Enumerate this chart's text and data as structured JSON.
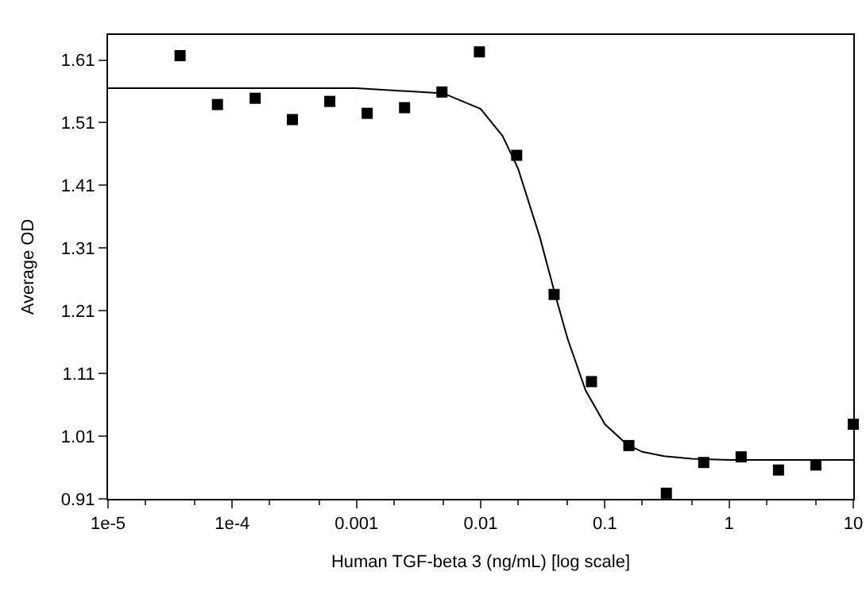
{
  "chart_data": {
    "type": "scatter",
    "xlabel": "Human TGF-beta 3 (ng/mL) [log scale]",
    "ylabel": "Average OD",
    "log": "x",
    "grid": false,
    "legend": false,
    "xlim": [
      1e-05,
      10
    ],
    "ylim": [
      0.91,
      1.65
    ],
    "xticks": [
      {
        "value": 1e-05,
        "label": "1e-5"
      },
      {
        "value": 0.0001,
        "label": "1e-4"
      },
      0.001,
      0.01,
      0.1,
      1,
      10
    ],
    "yticks": [
      0.91,
      1.01,
      1.11,
      1.21,
      1.31,
      1.41,
      1.51,
      1.61
    ],
    "series": [
      {
        "marker": "square",
        "color": "#000000",
        "x": [
          3.8e-05,
          7.6e-05,
          0.000153,
          0.000305,
          0.00061,
          0.00122,
          0.00244,
          0.00488,
          0.00977,
          0.0195,
          0.039,
          0.078,
          0.156,
          0.3125,
          0.625,
          1.25,
          2.5,
          5,
          10
        ],
        "values": [
          1.617,
          1.539,
          1.549,
          1.515,
          1.544,
          1.525,
          1.534,
          1.559,
          1.623,
          1.458,
          1.236,
          1.097,
          0.995,
          0.919,
          0.968,
          0.977,
          0.956,
          0.964,
          1.029
        ]
      },
      {
        "type": "line",
        "marker": "none",
        "line_style": "solid",
        "color": "#000000",
        "x": [
          1e-05,
          0.001,
          0.005,
          0.01,
          0.015,
          0.02,
          0.03,
          0.04,
          0.05,
          0.07,
          0.1,
          0.15,
          0.2,
          0.3,
          0.5,
          1,
          10
        ],
        "values": [
          1.565,
          1.565,
          1.557,
          1.532,
          1.489,
          1.437,
          1.327,
          1.234,
          1.166,
          1.083,
          1.029,
          0.997,
          0.985,
          0.978,
          0.974,
          0.972,
          0.972
        ]
      }
    ]
  }
}
